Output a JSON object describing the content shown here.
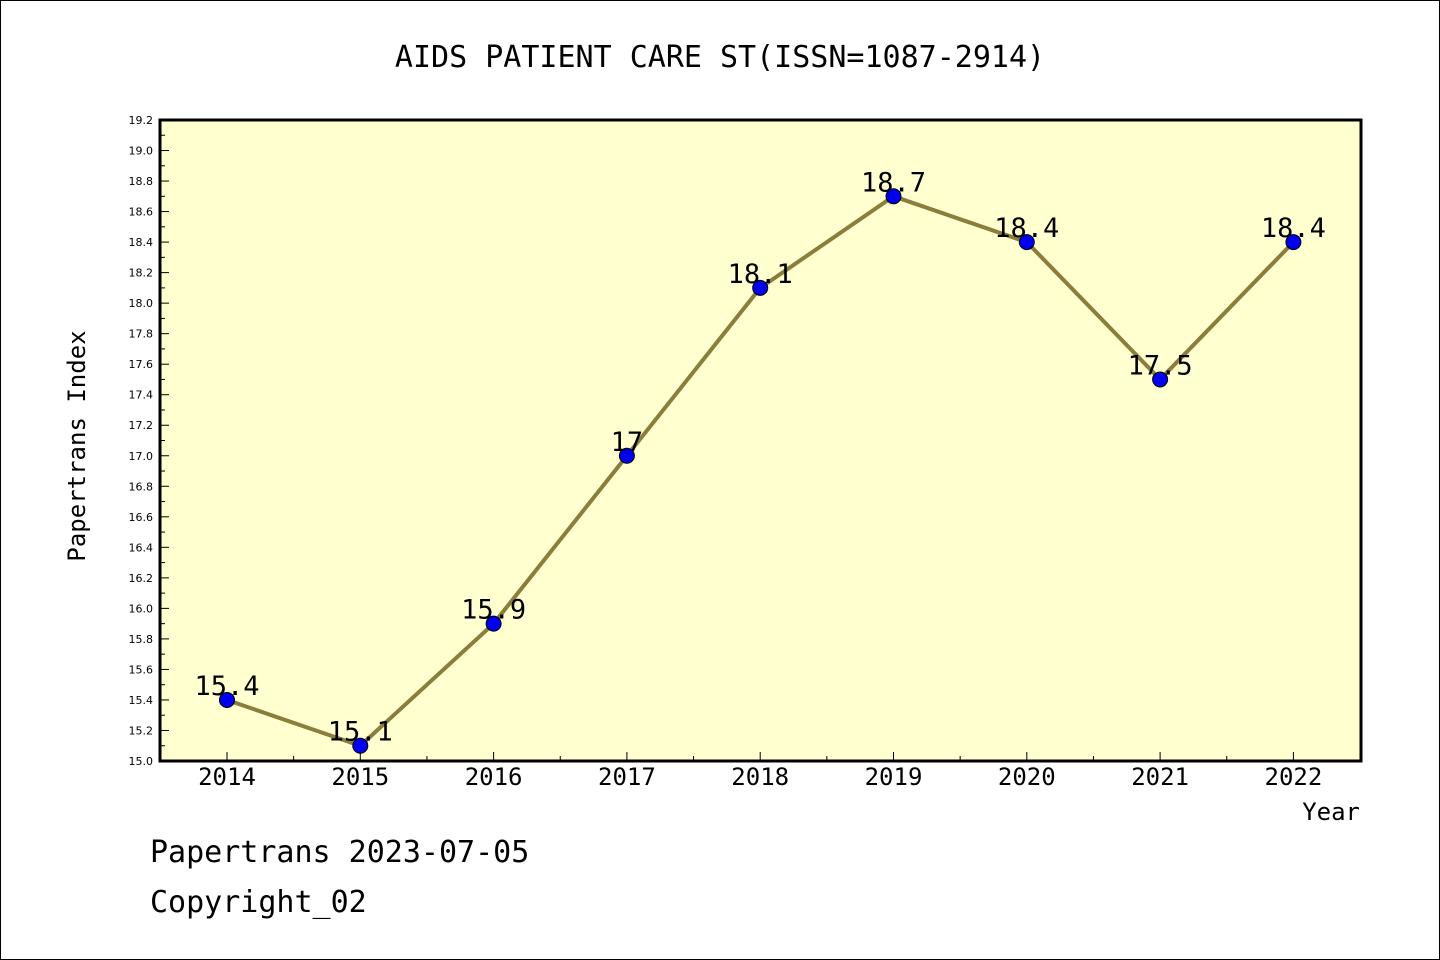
{
  "chart_data": {
    "type": "line",
    "title": "AIDS PATIENT CARE ST(ISSN=1087-2914)",
    "xlabel": "Year",
    "ylabel": "Papertrans Index",
    "categories": [
      "2014",
      "2015",
      "2016",
      "2017",
      "2018",
      "2019",
      "2020",
      "2021",
      "2022"
    ],
    "values": [
      15.4,
      15.1,
      15.9,
      17.0,
      18.1,
      18.7,
      18.4,
      17.5,
      18.4
    ],
    "data_labels": [
      "15.4",
      "15.1",
      "15.9",
      "17",
      "18.1",
      "18.7",
      "18.4",
      "17.5",
      "18.4"
    ],
    "ylim": [
      15.0,
      19.2
    ],
    "yticks": [
      "15.0",
      "15.2",
      "15.4",
      "15.6",
      "15.8",
      "16.0",
      "16.2",
      "16.4",
      "16.6",
      "16.8",
      "17.0",
      "17.2",
      "17.4",
      "17.6",
      "17.8",
      "18.0",
      "18.2",
      "18.4",
      "18.6",
      "18.8",
      "19.0",
      "19.2"
    ],
    "grid": false,
    "legend": "none",
    "colors": {
      "plot_background": "#ffffd0",
      "line": "#8b7d3a",
      "marker": "#0000ee"
    }
  },
  "footer": {
    "line1": "Papertrans 2023-07-05",
    "line2": "Copyright_02"
  }
}
